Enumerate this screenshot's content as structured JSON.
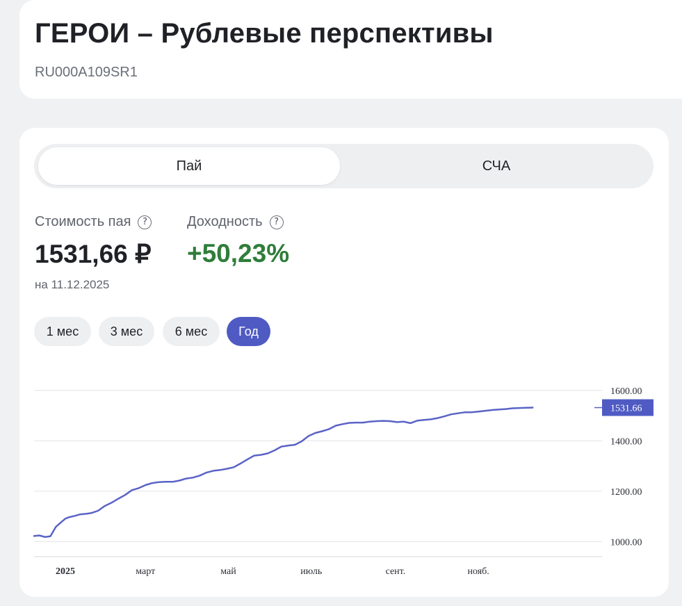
{
  "header": {
    "title": "ГЕРОИ – Рублевые перспективы",
    "isin": "RU000A109SR1"
  },
  "tabs": [
    {
      "label": "Пай",
      "active": true
    },
    {
      "label": "СЧА",
      "active": false
    }
  ],
  "stats": {
    "price_label": "Стоимость пая",
    "price_value": "1531,66 ₽",
    "yield_label": "Доходность",
    "yield_value": "+50,23%",
    "date": "на 11.12.2025",
    "help_icon": "question-circle-icon"
  },
  "periods": [
    {
      "label": "1 мес",
      "active": false
    },
    {
      "label": "3 мес",
      "active": false
    },
    {
      "label": "6 мес",
      "active": false
    },
    {
      "label": "Год",
      "active": true
    }
  ],
  "colors": {
    "accent": "#4f5bc3",
    "line": "#5a63c6",
    "positive": "#2f7d3a"
  },
  "chart_data": {
    "type": "line",
    "ylim": [
      940,
      1660
    ],
    "y_ticks": [
      "1600.00",
      "1400.00",
      "1200.00",
      "1000.00"
    ],
    "y_tick_values": [
      1600,
      1400,
      1200,
      1000
    ],
    "x_labels": [
      "2025",
      "март",
      "май",
      "июль",
      "сент.",
      "нояб."
    ],
    "x_label_dates": [
      "2025-01-01",
      "2025-03-01",
      "2025-05-01",
      "2025-07-01",
      "2025-09-01",
      "2025-11-01"
    ],
    "x_range": [
      "2024-12-09",
      "2026-01-31"
    ],
    "last_value_label": "1531.66",
    "last_value": 1531.66,
    "grid": true,
    "series": [
      {
        "x": [
          "2024-12-09",
          "2024-12-13",
          "2024-12-17",
          "2024-12-21",
          "2024-12-25",
          "2024-12-28",
          "2025-01-01",
          "2025-01-04",
          "2025-01-08",
          "2025-01-12",
          "2025-01-16",
          "2025-01-20",
          "2025-01-25",
          "2025-01-30",
          "2025-02-04",
          "2025-02-09",
          "2025-02-14",
          "2025-02-19",
          "2025-02-24",
          "2025-03-01",
          "2025-03-06",
          "2025-03-11",
          "2025-03-16",
          "2025-03-21",
          "2025-03-26",
          "2025-03-31",
          "2025-04-05",
          "2025-04-10",
          "2025-04-15",
          "2025-04-20",
          "2025-04-25",
          "2025-04-30",
          "2025-05-05",
          "2025-05-10",
          "2025-05-15",
          "2025-05-20",
          "2025-05-25",
          "2025-05-30",
          "2025-06-04",
          "2025-06-09",
          "2025-06-14",
          "2025-06-19",
          "2025-06-24",
          "2025-06-29",
          "2025-07-04",
          "2025-07-09",
          "2025-07-14",
          "2025-07-19",
          "2025-07-24",
          "2025-07-29",
          "2025-08-03",
          "2025-08-08",
          "2025-08-13",
          "2025-08-18",
          "2025-08-23",
          "2025-08-28",
          "2025-09-02",
          "2025-09-07",
          "2025-09-12",
          "2025-09-17",
          "2025-09-22",
          "2025-09-27",
          "2025-10-02",
          "2025-10-07",
          "2025-10-12",
          "2025-10-17",
          "2025-10-22",
          "2025-10-27",
          "2025-11-01",
          "2025-11-06",
          "2025-11-11",
          "2025-11-16",
          "2025-11-21",
          "2025-11-26",
          "2025-12-01",
          "2025-12-06",
          "2025-12-11"
        ],
        "y": [
          1022,
          1024,
          1018,
          1021,
          1058,
          1072,
          1091,
          1097,
          1102,
          1108,
          1110,
          1113,
          1122,
          1141,
          1154,
          1170,
          1185,
          1204,
          1212,
          1224,
          1232,
          1236,
          1237,
          1237,
          1242,
          1250,
          1254,
          1262,
          1274,
          1281,
          1284,
          1289,
          1295,
          1310,
          1326,
          1341,
          1344,
          1350,
          1362,
          1377,
          1381,
          1384,
          1398,
          1419,
          1431,
          1438,
          1446,
          1460,
          1466,
          1471,
          1472,
          1472,
          1476,
          1478,
          1479,
          1478,
          1474,
          1476,
          1470,
          1480,
          1483,
          1485,
          1490,
          1497,
          1505,
          1509,
          1513,
          1513,
          1516,
          1519,
          1522,
          1524,
          1526,
          1529,
          1530,
          1531,
          1531.66
        ]
      }
    ]
  }
}
